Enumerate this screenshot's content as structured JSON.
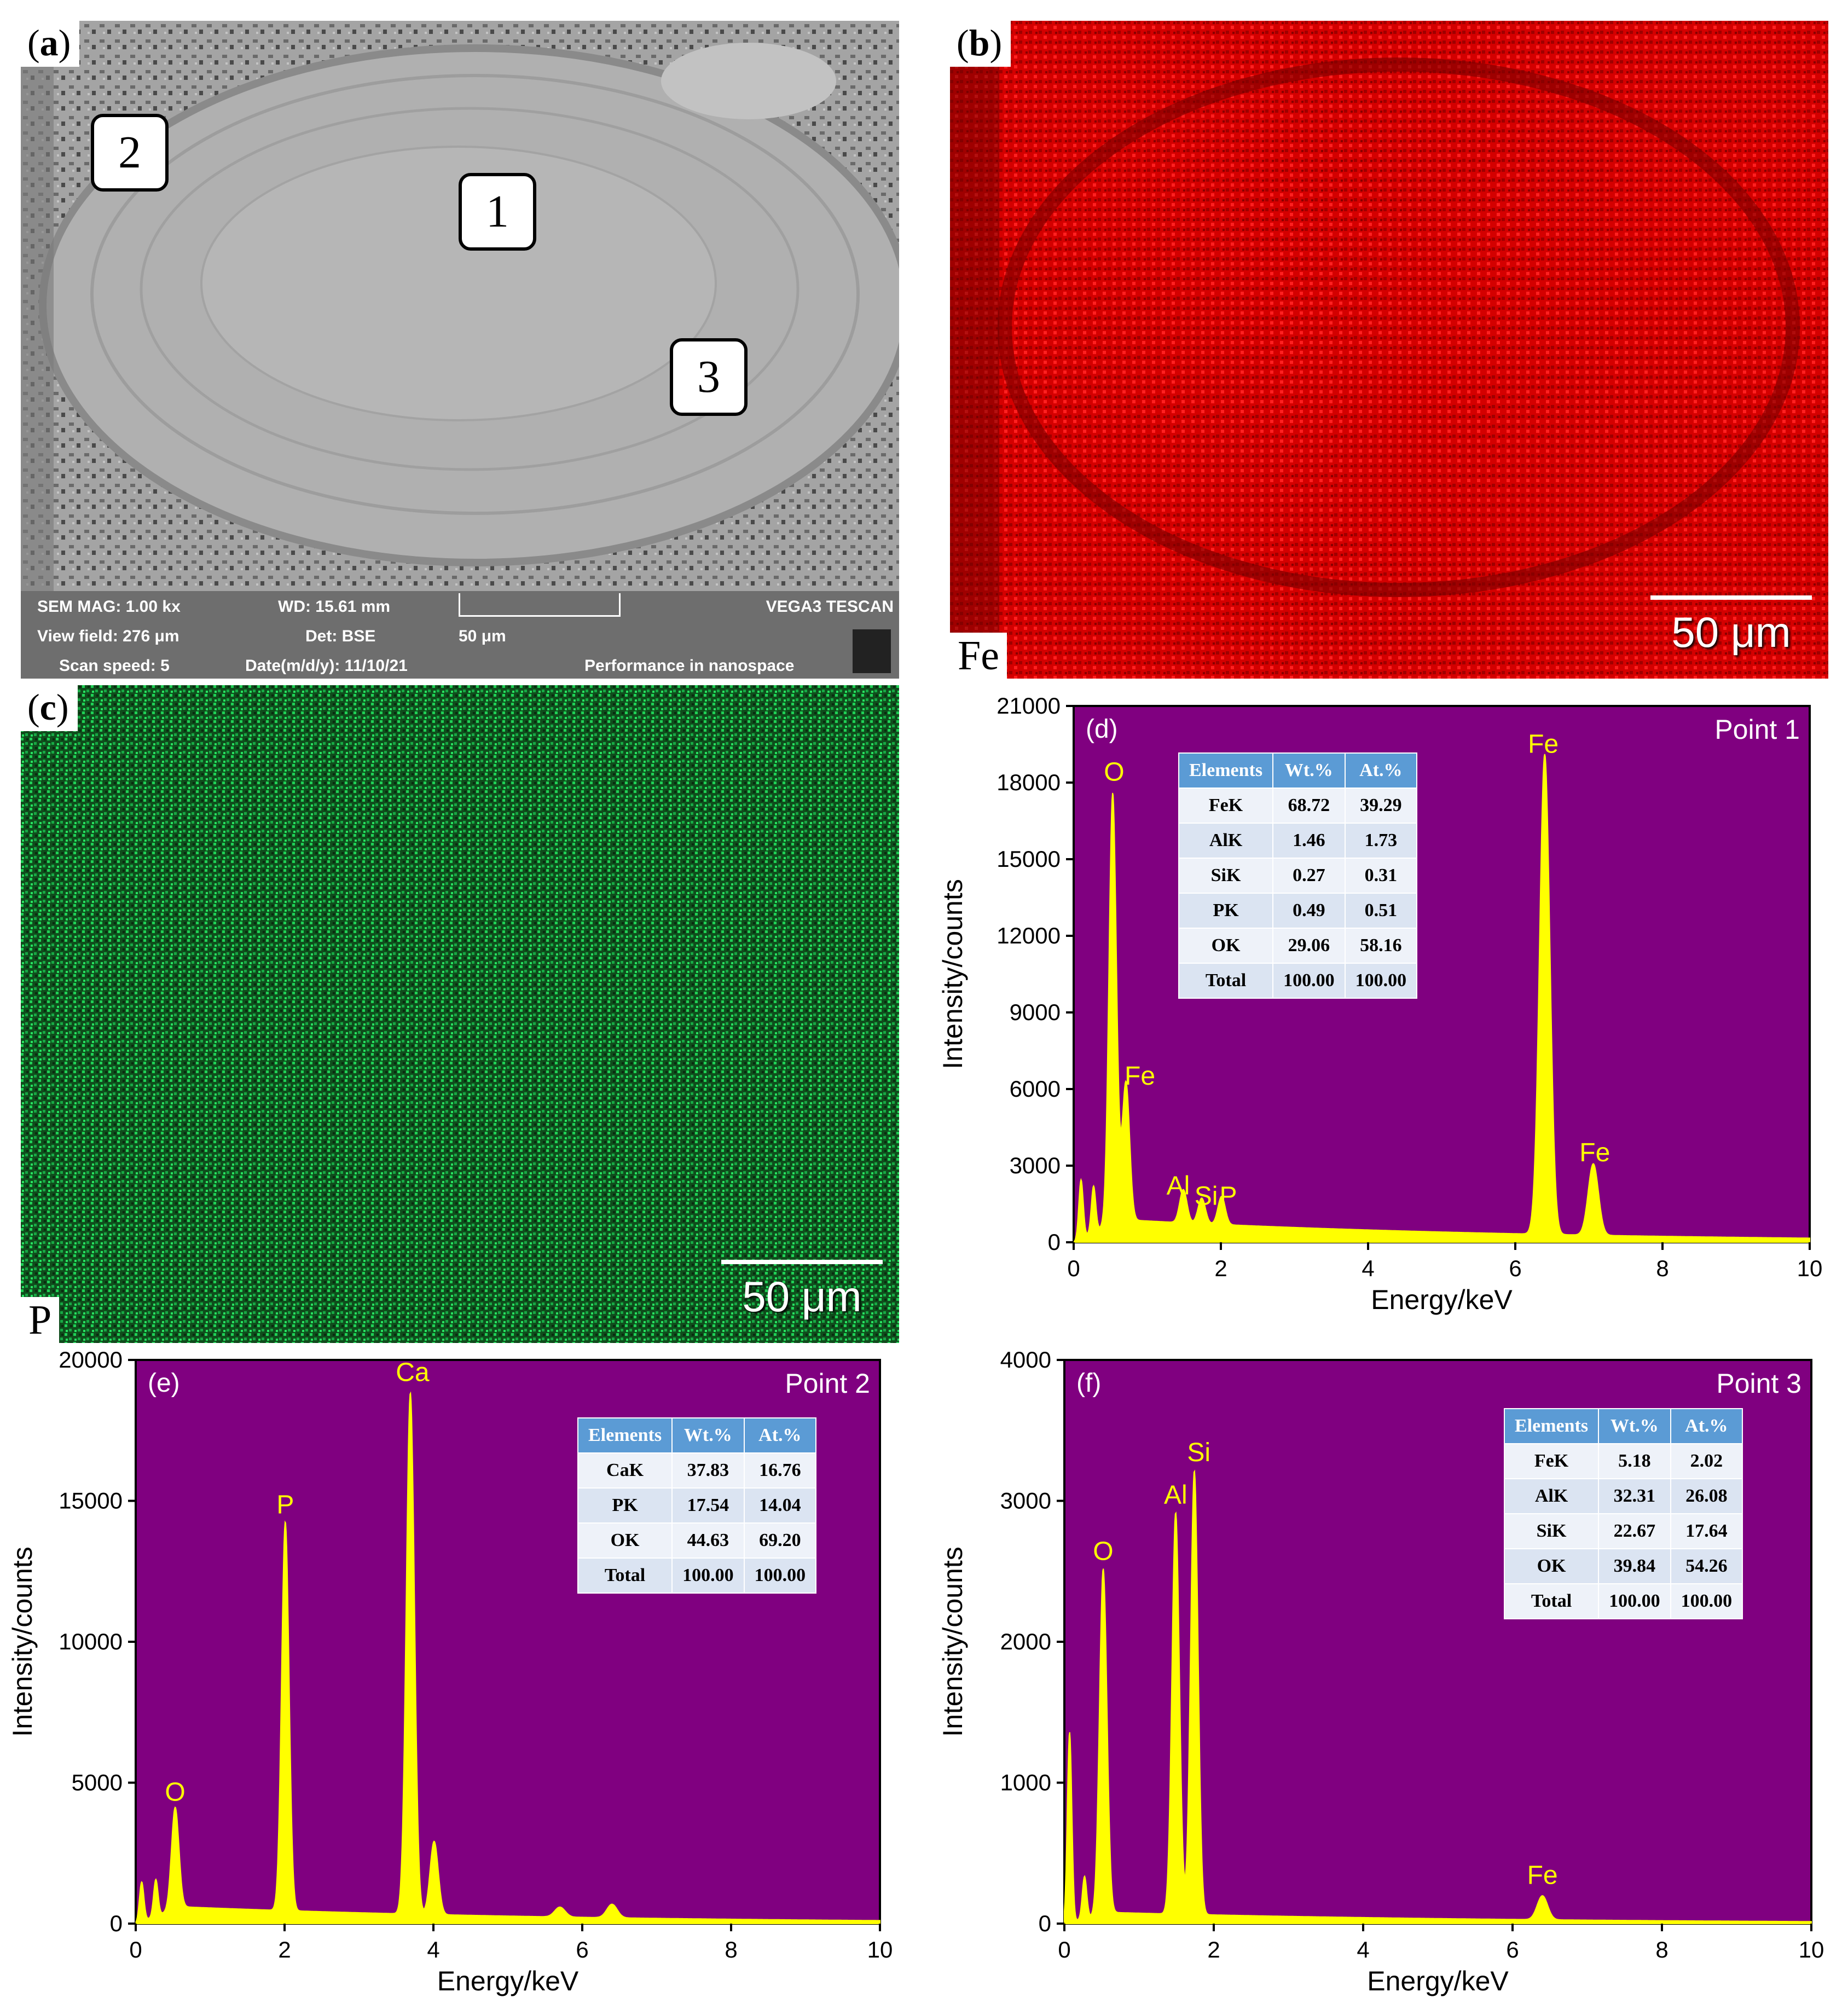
{
  "panels": {
    "a": {
      "label": "a"
    },
    "b": {
      "label": "b",
      "element": "Fe",
      "scale": "50 μm"
    },
    "c": {
      "label": "c",
      "element": "P",
      "scale": "50 μm"
    }
  },
  "sem": {
    "callouts": [
      "1",
      "2",
      "3"
    ],
    "footer": {
      "mag": "SEM MAG: 1.00 kx",
      "wd": "WD: 15.61 mm",
      "brand": "VEGA3 TESCAN",
      "view_field": "View field: 276 μm",
      "det": "Det: BSE",
      "scale": "50 μm",
      "scan_speed": "Scan speed: 5",
      "date": "Date(m/d/y): 11/10/21",
      "slogan": "Performance in nanospace"
    }
  },
  "colors": {
    "plot_bg": "#800080",
    "spectrum": "#ffff00",
    "fe_map": "#d40000",
    "p_map": "#19c24a"
  },
  "chart_data": [
    {
      "id": "d",
      "type": "line",
      "panel_label": "(d)",
      "point": "Point 1",
      "xlabel": "Energy/keV",
      "ylabel": "Intensity/counts",
      "xlim": [
        0,
        10
      ],
      "ylim": [
        0,
        21000
      ],
      "xticks": [
        0,
        2,
        4,
        6,
        8,
        10
      ],
      "yticks": [
        0,
        3000,
        6000,
        9000,
        12000,
        15000,
        18000,
        21000
      ],
      "background": 900,
      "peaks": [
        {
          "x": 0.1,
          "y": 2300,
          "w": 0.03
        },
        {
          "x": 0.27,
          "y": 1800,
          "w": 0.03
        },
        {
          "x": 0.53,
          "y": 16800,
          "w": 0.05
        },
        {
          "x": 0.71,
          "y": 5400,
          "w": 0.05
        },
        {
          "x": 1.49,
          "y": 1300,
          "w": 0.05
        },
        {
          "x": 1.74,
          "y": 1000,
          "w": 0.05
        },
        {
          "x": 2.01,
          "y": 1100,
          "w": 0.05
        },
        {
          "x": 6.4,
          "y": 18800,
          "w": 0.07
        },
        {
          "x": 7.06,
          "y": 2800,
          "w": 0.07
        }
      ],
      "labels": [
        {
          "text": "O",
          "x": 0.55,
          "y": 17900
        },
        {
          "text": "Fe",
          "x": 0.9,
          "y": 6000
        },
        {
          "text": "Al",
          "x": 1.42,
          "y": 1700
        },
        {
          "text": "Si",
          "x": 1.8,
          "y": 1300
        },
        {
          "text": "P",
          "x": 2.1,
          "y": 1300
        },
        {
          "text": "Fe",
          "x": 6.38,
          "y": 19000
        },
        {
          "text": "Fe",
          "x": 7.08,
          "y": 3000
        }
      ],
      "table": {
        "headers": [
          "Elements",
          "Wt.%",
          "At.%"
        ],
        "rows": [
          [
            "FeK",
            "68.72",
            "39.29"
          ],
          [
            "AlK",
            "1.46",
            "1.73"
          ],
          [
            "SiK",
            "0.27",
            "0.31"
          ],
          [
            "PK",
            "0.49",
            "0.51"
          ],
          [
            "OK",
            "29.06",
            "58.16"
          ],
          [
            "Total",
            "100.00",
            "100.00"
          ]
        ]
      }
    },
    {
      "id": "e",
      "type": "line",
      "panel_label": "(e)",
      "point": "Point 2",
      "xlabel": "Energy/keV",
      "ylabel": "Intensity/counts",
      "xlim": [
        0,
        10
      ],
      "ylim": [
        0,
        20000
      ],
      "xticks": [
        0,
        2,
        4,
        6,
        8,
        10
      ],
      "yticks": [
        0,
        5000,
        10000,
        15000,
        20000
      ],
      "background": 600,
      "peaks": [
        {
          "x": 0.08,
          "y": 1400,
          "w": 0.03
        },
        {
          "x": 0.27,
          "y": 1300,
          "w": 0.03
        },
        {
          "x": 0.53,
          "y": 3600,
          "w": 0.05
        },
        {
          "x": 2.01,
          "y": 13800,
          "w": 0.05
        },
        {
          "x": 3.69,
          "y": 18500,
          "w": 0.055
        },
        {
          "x": 4.01,
          "y": 2600,
          "w": 0.055
        },
        {
          "x": 5.7,
          "y": 350,
          "w": 0.07
        },
        {
          "x": 6.4,
          "y": 480,
          "w": 0.07
        }
      ],
      "labels": [
        {
          "text": "O",
          "x": 0.53,
          "y": 4200
        },
        {
          "text": "P",
          "x": 2.01,
          "y": 14400
        },
        {
          "text": "Ca",
          "x": 3.72,
          "y": 19100
        }
      ],
      "table": {
        "headers": [
          "Elements",
          "Wt.%",
          "At.%"
        ],
        "rows": [
          [
            "CaK",
            "37.83",
            "16.76"
          ],
          [
            "PK",
            "17.54",
            "14.04"
          ],
          [
            "OK",
            "44.63",
            "69.20"
          ],
          [
            "Total",
            "100.00",
            "100.00"
          ]
        ]
      }
    },
    {
      "id": "f",
      "type": "line",
      "panel_label": "(f)",
      "point": "Point 3",
      "xlabel": "Energy/keV",
      "ylabel": "Intensity/counts",
      "xlim": [
        0,
        10
      ],
      "ylim": [
        0,
        4000
      ],
      "xticks": [
        0,
        2,
        4,
        6,
        8,
        10
      ],
      "yticks": [
        0,
        1000,
        2000,
        3000,
        4000
      ],
      "background": 80,
      "peaks": [
        {
          "x": 0.07,
          "y": 1350,
          "w": 0.03
        },
        {
          "x": 0.27,
          "y": 300,
          "w": 0.03
        },
        {
          "x": 0.52,
          "y": 2450,
          "w": 0.05
        },
        {
          "x": 1.49,
          "y": 2850,
          "w": 0.05
        },
        {
          "x": 1.74,
          "y": 3150,
          "w": 0.05
        },
        {
          "x": 6.4,
          "y": 170,
          "w": 0.07
        }
      ],
      "labels": [
        {
          "text": "O",
          "x": 0.52,
          "y": 2550
        },
        {
          "text": "Al",
          "x": 1.49,
          "y": 2950
        },
        {
          "text": "Si",
          "x": 1.8,
          "y": 3250
        },
        {
          "text": "Fe",
          "x": 6.4,
          "y": 250
        }
      ],
      "table": {
        "headers": [
          "Elements",
          "Wt.%",
          "At.%"
        ],
        "rows": [
          [
            "FeK",
            "5.18",
            "2.02"
          ],
          [
            "AlK",
            "32.31",
            "26.08"
          ],
          [
            "SiK",
            "22.67",
            "17.64"
          ],
          [
            "OK",
            "39.84",
            "54.26"
          ],
          [
            "Total",
            "100.00",
            "100.00"
          ]
        ]
      }
    }
  ]
}
